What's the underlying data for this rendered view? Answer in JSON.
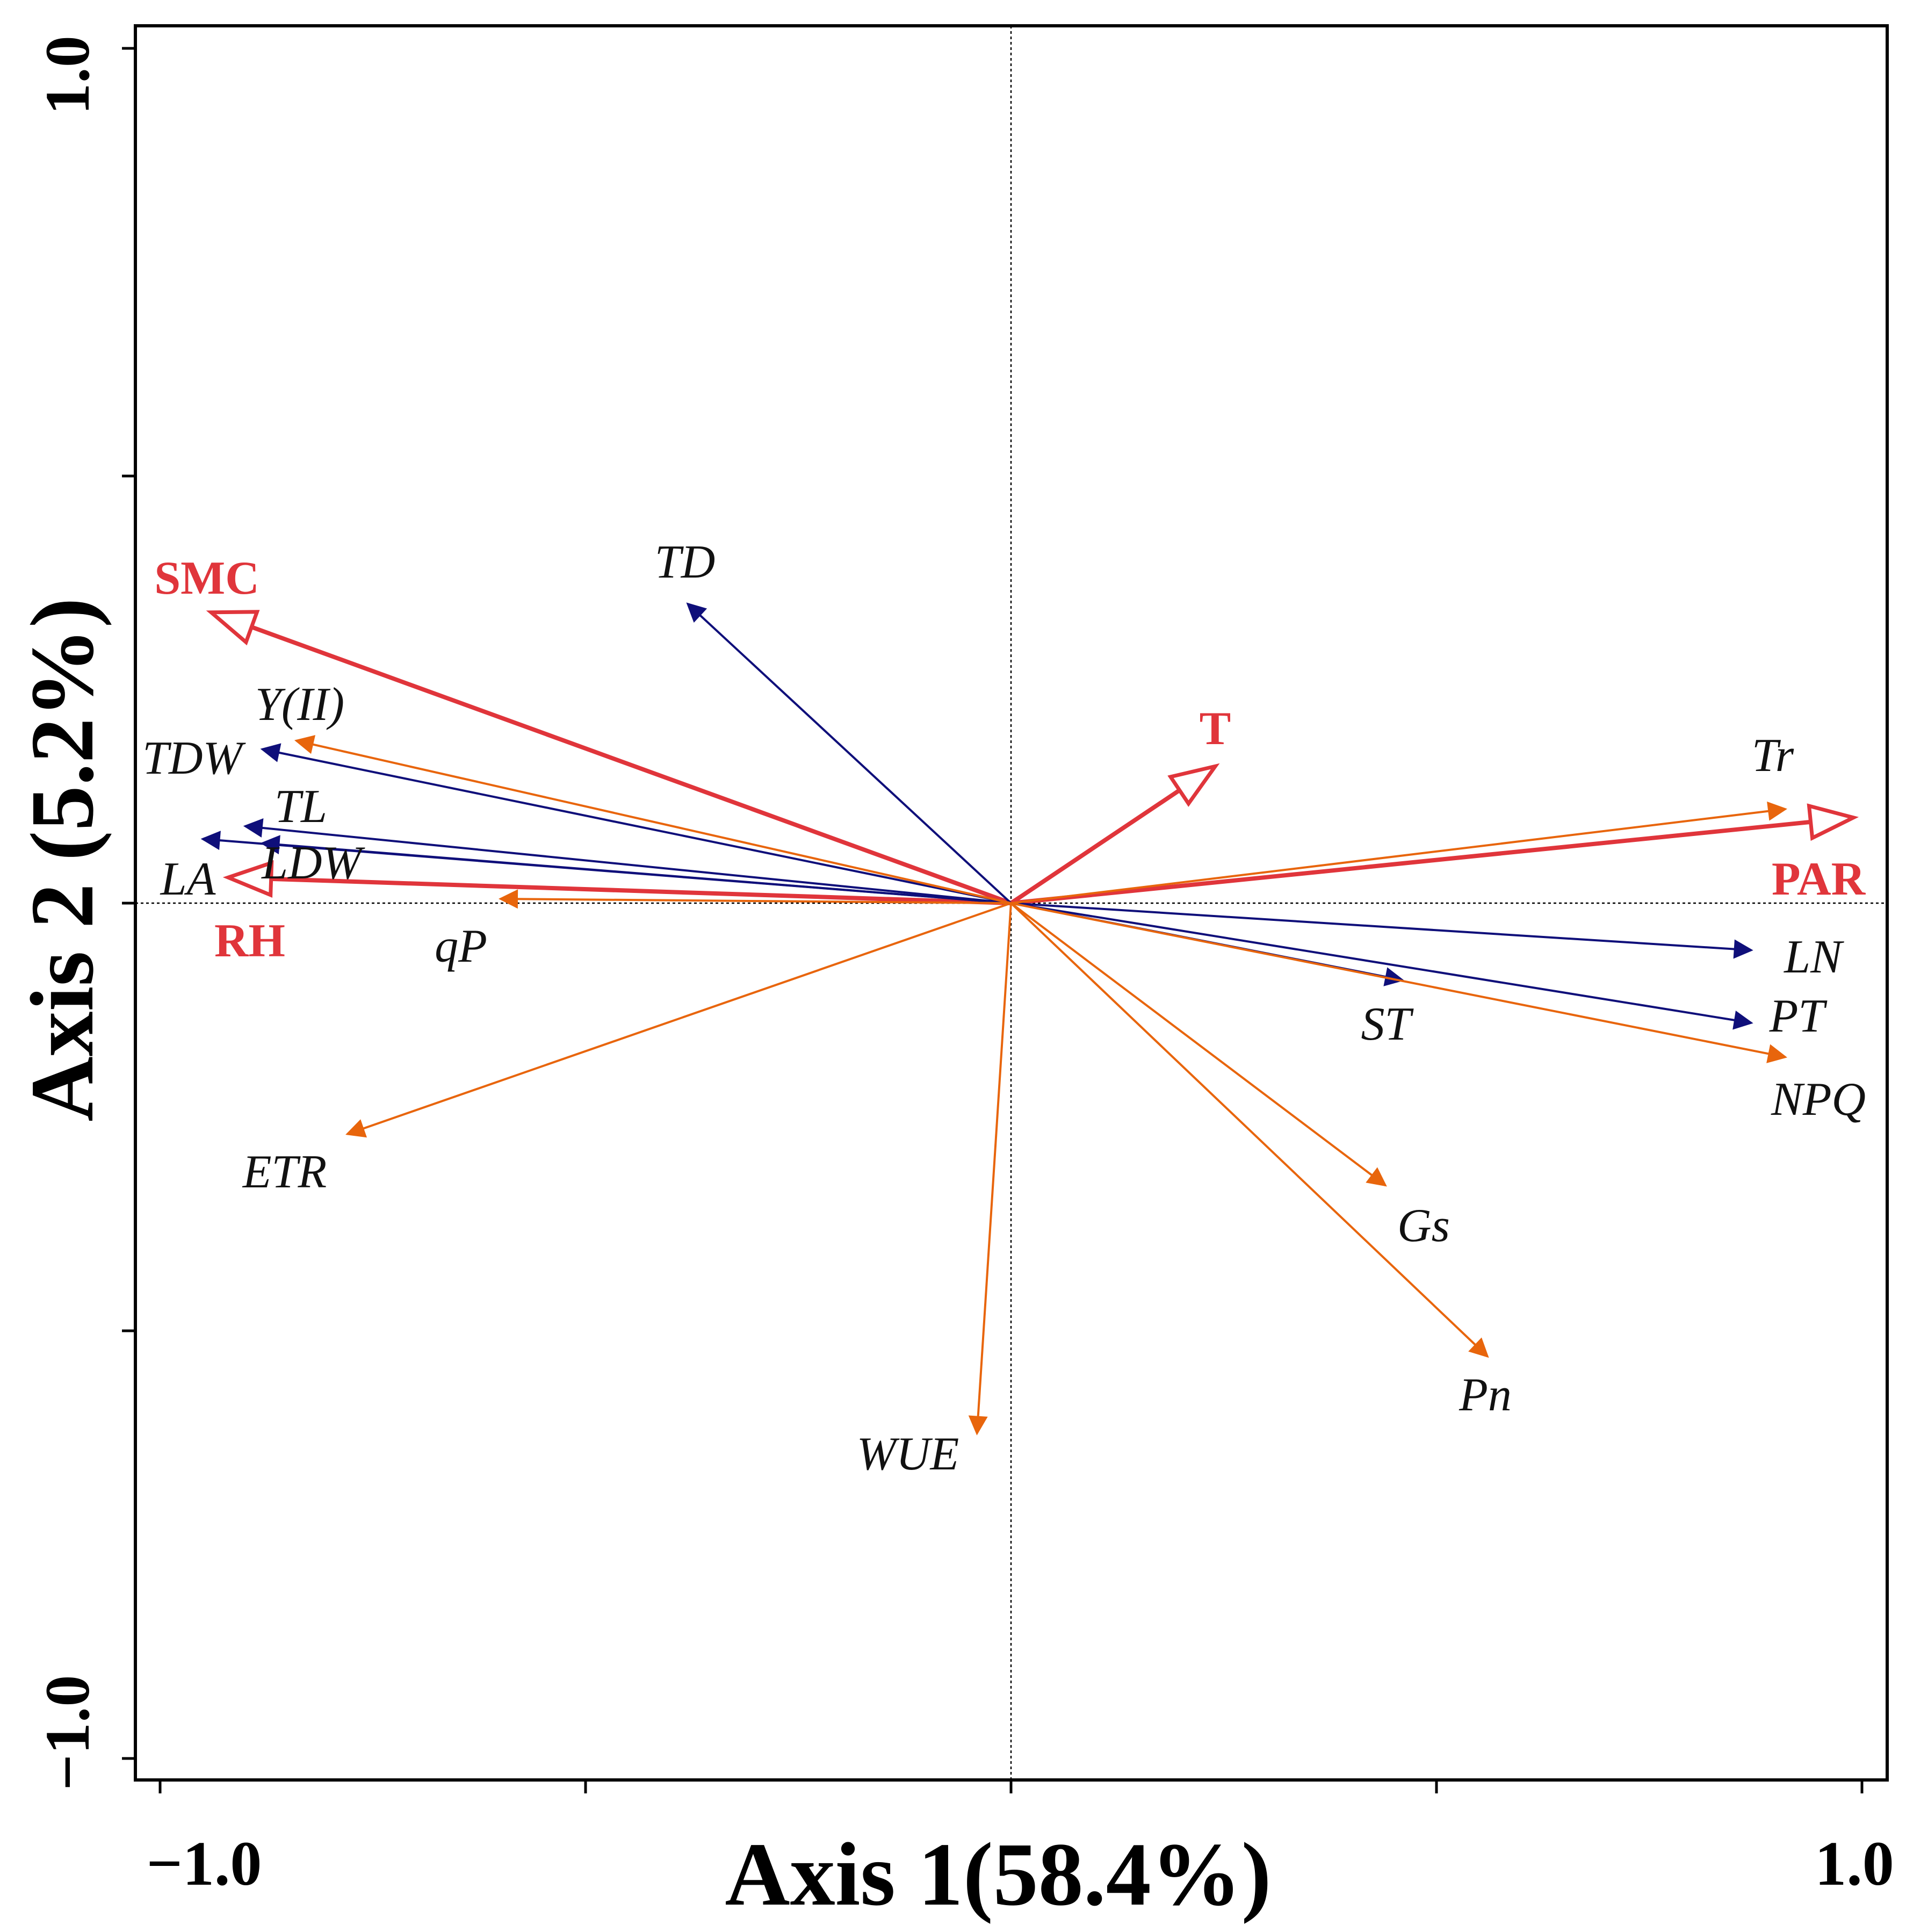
{
  "chart_data": {
    "type": "biplot",
    "xlabel": "Axis 1(58.4%)",
    "ylabel": "Axis 2 (5.2%)",
    "xlim": [
      -1.0,
      1.0
    ],
    "ylim": [
      -1.0,
      1.0
    ],
    "x_tick_labels": [
      "−1.0",
      "1.0"
    ],
    "y_tick_labels": [
      "1.0",
      "−1.0"
    ],
    "colors": {
      "environment": "#e0353b",
      "growth": "#0f0f7a",
      "physiology": "#e8650c"
    },
    "environment_vectors": [
      {
        "label": "SMC",
        "x": -0.94,
        "y": 0.34
      },
      {
        "label": "T",
        "x": 0.24,
        "y": 0.16
      },
      {
        "label": "PAR",
        "x": 0.99,
        "y": 0.1
      },
      {
        "label": "RH",
        "x": -0.92,
        "y": 0.03
      }
    ],
    "growth_vectors": [
      {
        "label": "TD",
        "x": -0.38,
        "y": 0.35
      },
      {
        "label": "TDW",
        "x": -0.88,
        "y": 0.18
      },
      {
        "label": "TL",
        "x": -0.9,
        "y": 0.09
      },
      {
        "label": "LDW",
        "x": -0.88,
        "y": 0.07
      },
      {
        "label": "LA",
        "x": -0.95,
        "y": 0.075
      },
      {
        "label": "LN",
        "x": 0.87,
        "y": -0.055
      },
      {
        "label": "ST",
        "x": 0.46,
        "y": -0.09
      },
      {
        "label": "PT",
        "x": 0.87,
        "y": -0.14
      }
    ],
    "physiology_vectors": [
      {
        "label": "Y(II)",
        "x": -0.84,
        "y": 0.19
      },
      {
        "label": "qP",
        "x": -0.6,
        "y": 0.005
      },
      {
        "label": "Tr",
        "x": 0.91,
        "y": 0.11
      },
      {
        "label": "NPQ",
        "x": 0.91,
        "y": -0.18
      },
      {
        "label": "ETR",
        "x": -0.78,
        "y": -0.27
      },
      {
        "label": "Gs",
        "x": 0.44,
        "y": -0.33
      },
      {
        "label": "Pn",
        "x": 0.56,
        "y": -0.53
      },
      {
        "label": "WUE",
        "x": -0.04,
        "y": -0.62
      }
    ]
  }
}
